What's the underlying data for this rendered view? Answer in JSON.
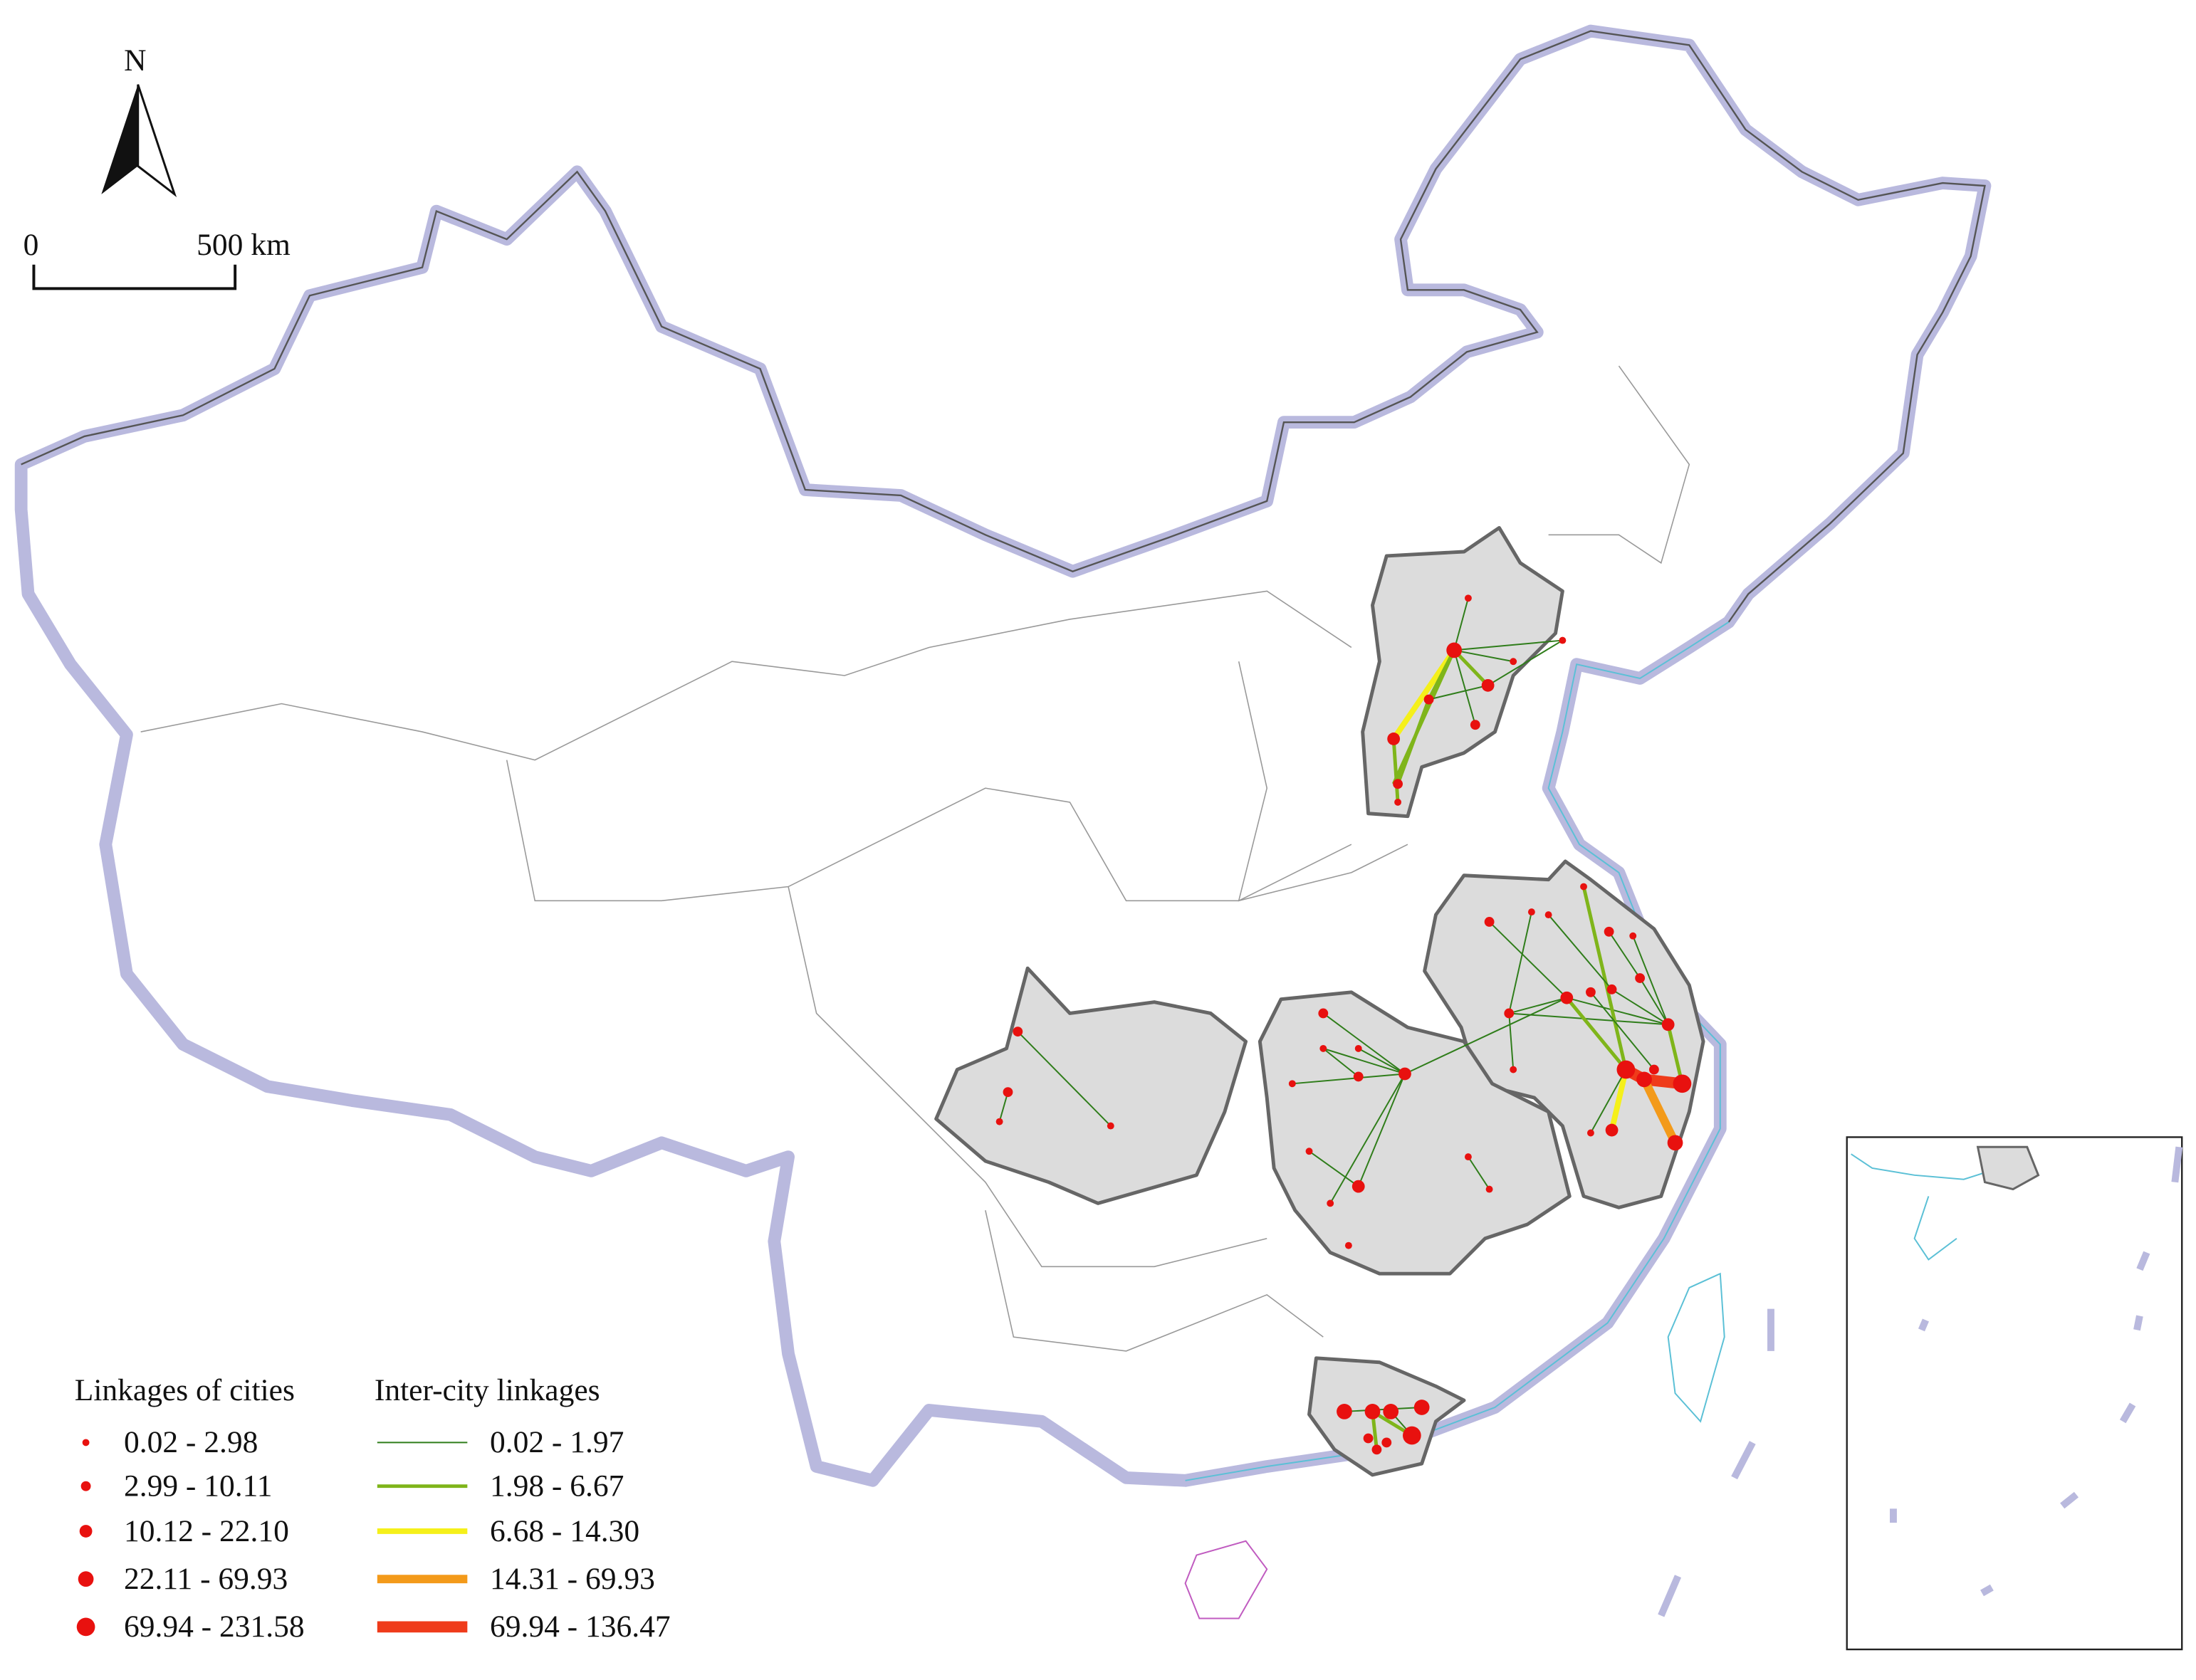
{
  "map": {
    "north_label": "N",
    "scale_bar": {
      "start": "0",
      "end": "500 km"
    },
    "legend": {
      "cities": {
        "title": "Linkages of cities",
        "color": "#e8110f",
        "classes": [
          "0.02 - 2.98",
          "2.99 - 10.11",
          "10.12 - 22.10",
          "22.11 - 69.93",
          "69.94 - 231.58"
        ]
      },
      "linkages": {
        "title": "Inter-city linkages",
        "classes": [
          {
            "label": "0.02 - 1.97",
            "color": "#2f7d1a"
          },
          {
            "label": "1.98 - 6.67",
            "color": "#7fb51a"
          },
          {
            "label": "6.68 - 14.30",
            "color": "#f5f01a"
          },
          {
            "label": "14.31 - 69.93",
            "color": "#f39a1a"
          },
          {
            "label": "69.94 - 136.47",
            "color": "#ef3b1a"
          }
        ]
      }
    }
  }
}
